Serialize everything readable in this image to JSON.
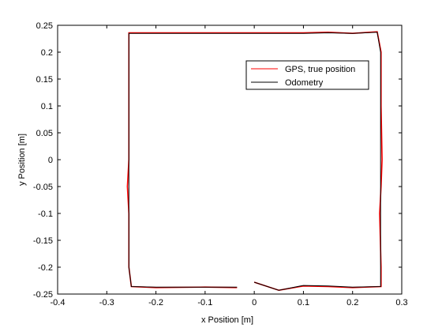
{
  "chart_data": {
    "type": "line",
    "title": "",
    "xlabel": "x Position [m]",
    "ylabel": "y Position [m]",
    "xlim": [
      -0.4,
      0.3
    ],
    "ylim": [
      -0.25,
      0.25
    ],
    "xticks": [
      -0.4,
      -0.3,
      -0.2,
      -0.1,
      0,
      0.1,
      0.2,
      0.3
    ],
    "xtick_labels": [
      "-0.4",
      "-0.3",
      "-0.2",
      "-0.1",
      "0",
      "0.1",
      "0.2",
      "0.3"
    ],
    "yticks": [
      -0.25,
      -0.2,
      -0.15,
      -0.1,
      -0.05,
      0,
      0.05,
      0.1,
      0.15,
      0.2,
      0.25
    ],
    "ytick_labels": [
      "-0.25",
      "-0.2",
      "-0.15",
      "-0.1",
      "-0.05",
      "0",
      "0.05",
      "0.1",
      "0.15",
      "0.2",
      "0.25"
    ],
    "grid": false,
    "legend": {
      "position": "top-right",
      "entries": [
        "GPS, true position",
        "Odometry"
      ]
    },
    "series": [
      {
        "name": "GPS, true position",
        "color": "#ff0000",
        "x": [
          -0.035,
          -0.1,
          -0.2,
          -0.25,
          -0.255,
          -0.255,
          -0.258,
          -0.255,
          -0.255,
          -0.255,
          -0.255,
          -0.2,
          -0.1,
          0,
          0.1,
          0.15,
          0.2,
          0.25,
          0.258,
          0.258,
          0.26,
          0.258,
          0.255,
          0.258,
          0.258,
          0.2,
          0.15,
          0.1,
          0.05,
          0
        ],
        "y": [
          -0.238,
          -0.237,
          -0.238,
          -0.236,
          -0.2,
          -0.1,
          -0.05,
          0,
          0.1,
          0.2,
          0.236,
          0.236,
          0.236,
          0.236,
          0.236,
          0.237,
          0.235,
          0.238,
          0.2,
          0.1,
          0,
          -0.05,
          -0.1,
          -0.2,
          -0.236,
          -0.238,
          -0.236,
          -0.235,
          -0.243,
          -0.228
        ]
      },
      {
        "name": "Odometry",
        "color": "#000000",
        "x": [
          -0.035,
          -0.1,
          -0.2,
          -0.25,
          -0.255,
          -0.255,
          -0.255,
          -0.255,
          -0.255,
          -0.255,
          -0.255,
          -0.2,
          -0.1,
          0,
          0.1,
          0.15,
          0.2,
          0.25,
          0.257,
          0.257,
          0.257,
          0.257,
          0.257,
          0.257,
          0.257,
          0.2,
          0.15,
          0.1,
          0.05,
          0
        ],
        "y": [
          -0.237,
          -0.237,
          -0.237,
          -0.236,
          -0.2,
          -0.1,
          -0.05,
          0,
          0.1,
          0.2,
          0.235,
          0.235,
          0.235,
          0.235,
          0.235,
          0.236,
          0.235,
          0.237,
          0.2,
          0.1,
          0,
          -0.05,
          -0.1,
          -0.2,
          -0.236,
          -0.237,
          -0.235,
          -0.234,
          -0.243,
          -0.228
        ]
      }
    ]
  }
}
